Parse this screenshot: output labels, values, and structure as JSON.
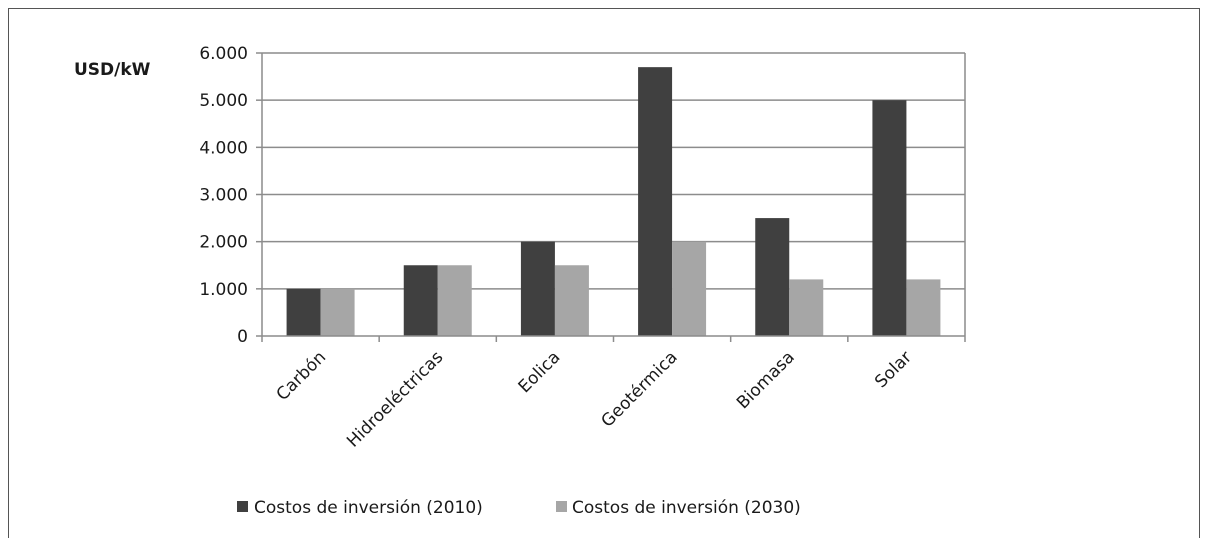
{
  "chart_data": {
    "type": "bar",
    "ylabel": "USD/kW",
    "xlabel": "",
    "ylim": [
      0,
      6000
    ],
    "y_ticks": [
      {
        "value": 0,
        "label": "0"
      },
      {
        "value": 1000,
        "label": "1.000"
      },
      {
        "value": 2000,
        "label": "2.000"
      },
      {
        "value": 3000,
        "label": "3.000"
      },
      {
        "value": 4000,
        "label": "4.000"
      },
      {
        "value": 5000,
        "label": "5.000"
      },
      {
        "value": 6000,
        "label": "6.000"
      }
    ],
    "grid": true,
    "legend_position": "bottom-left",
    "categories": [
      "Carbón",
      "Hidroeléctricas",
      "Eolica",
      "Geotérmica",
      "Biomasa",
      "Solar"
    ],
    "series": [
      {
        "name": "Costos de inversión (2010)",
        "color": "#404040",
        "values": [
          1000,
          1500,
          2000,
          5700,
          2500,
          5000
        ]
      },
      {
        "name": "Costos de inversión (2030)",
        "color": "#a6a6a6",
        "values": [
          1000,
          1500,
          1500,
          2000,
          1200,
          1200
        ]
      }
    ]
  }
}
